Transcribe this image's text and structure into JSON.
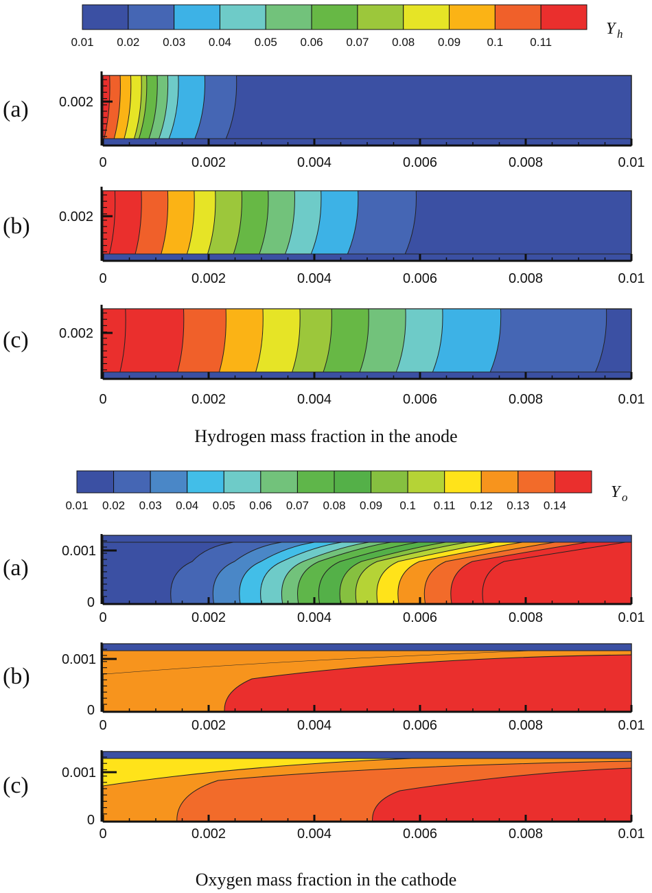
{
  "chart_data": [
    {
      "type": "heatmap",
      "group": "anode",
      "caption": "Hydrogen mass fraction in the anode",
      "colorbar": {
        "symbol": "Y",
        "subscript": "h",
        "ticks": [
          "0.01",
          "0.02",
          "0.03",
          "0.04",
          "0.05",
          "0.06",
          "0.07",
          "0.08",
          "0.09",
          "0.1",
          "0.11"
        ],
        "colors": [
          "#3b50a3",
          "#4566b4",
          "#3db2e6",
          "#6ecbc8",
          "#72c27b",
          "#67b845",
          "#9cc73b",
          "#e6e426",
          "#fbb315",
          "#f0602a",
          "#ea2f2d"
        ]
      },
      "xlim": [
        0,
        0.01
      ],
      "xticks": [
        "0",
        "0.002",
        "0.004",
        "0.006",
        "0.008",
        "0.01"
      ],
      "yticks": [
        "0.002"
      ],
      "panels": [
        {
          "label": "(a)",
          "contour_x": [
            0.0001,
            0.0003,
            0.0005,
            0.0007,
            0.0008,
            0.001,
            0.0012,
            0.0014,
            0.0019,
            0.0025
          ]
        },
        {
          "label": "(b)",
          "contour_x": [
            0.0002,
            0.0007,
            0.0012,
            0.0017,
            0.0021,
            0.0026,
            0.0031,
            0.0036,
            0.0041,
            0.0048,
            0.0059
          ]
        },
        {
          "label": "(c)",
          "contour_x": [
            0.0004,
            0.0015,
            0.0023,
            0.003,
            0.0037,
            0.0043,
            0.005,
            0.0057,
            0.0064,
            0.0075,
            0.0095
          ]
        }
      ]
    },
    {
      "type": "heatmap",
      "group": "cathode",
      "caption": "Oxygen mass fraction in the cathode",
      "colorbar": {
        "symbol": "Y",
        "subscript": "o",
        "ticks": [
          "0.01",
          "0.02",
          "0.03",
          "0.04",
          "0.05",
          "0.06",
          "0.07",
          "0.08",
          "0.09",
          "0.1",
          "0.11",
          "0.12",
          "0.13",
          "0.14"
        ],
        "colors": [
          "#3b50a3",
          "#4566b4",
          "#4a87c7",
          "#42bee8",
          "#6ecbc8",
          "#72c27b",
          "#5fb64a",
          "#54b048",
          "#86c040",
          "#b5d336",
          "#ffe31a",
          "#f7941d",
          "#f26b2a",
          "#ea2f2d"
        ]
      },
      "xlim": [
        0,
        0.01
      ],
      "xticks": [
        "0",
        "0.002",
        "0.004",
        "0.006",
        "0.008",
        "0.01"
      ],
      "yticks": [
        "0.001",
        "0"
      ],
      "panels": [
        {
          "label": "(a)",
          "top": 0,
          "contour_x": [
            0.0013,
            0.0021,
            0.0026,
            0.003,
            0.0034,
            0.0037,
            0.0041,
            0.0045,
            0.0048,
            0.0052,
            0.0056,
            0.0061,
            0.0066,
            0.0072
          ],
          "background": 0
        },
        {
          "label": "(b)",
          "contour_x": [
            0.0023
          ],
          "background": 12
        },
        {
          "label": "(c)",
          "contour_x": [
            0.0014,
            0.0051
          ],
          "background": 11
        }
      ]
    }
  ]
}
